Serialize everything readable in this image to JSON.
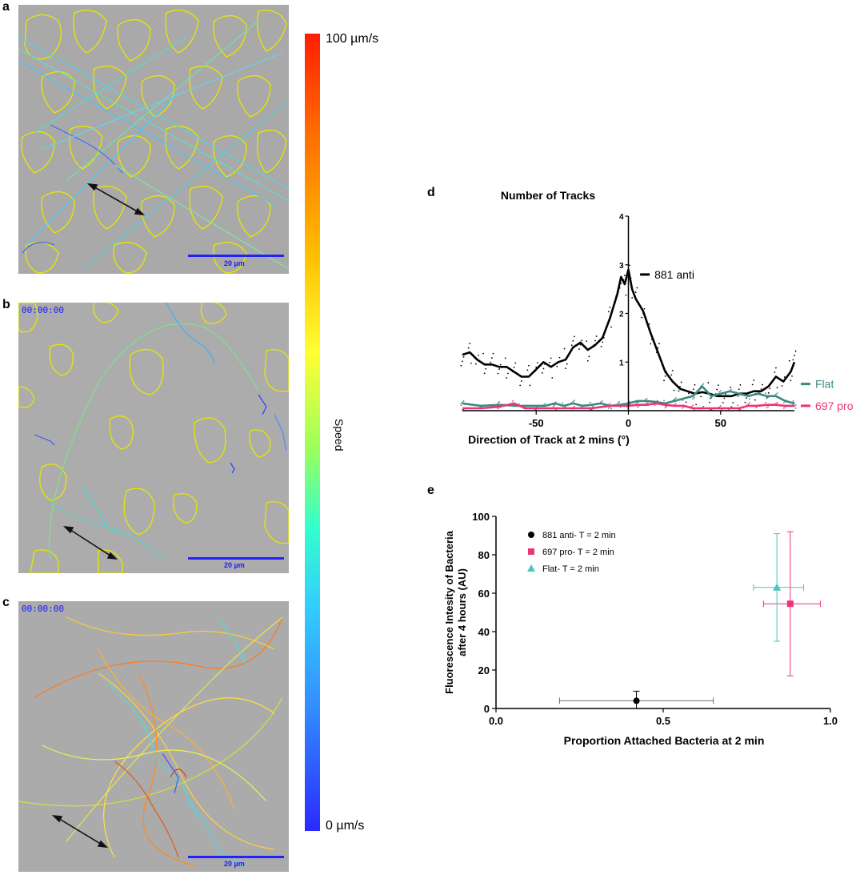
{
  "panels": {
    "a": {
      "letter": "a",
      "scalebar": "20 µm"
    },
    "b": {
      "letter": "b",
      "timestamp": "00:00:00",
      "scalebar": "20 µm"
    },
    "c": {
      "letter": "c",
      "timestamp": "00:00:00",
      "scalebar": "20 µm"
    },
    "d": {
      "letter": "d"
    },
    "e": {
      "letter": "e"
    }
  },
  "colorbar": {
    "top_label": "100 µm/s",
    "bottom_label": "0 µm/s",
    "title": "Speed"
  },
  "colors": {
    "anti881": "#000000",
    "flat": "#3b8a80",
    "pro697": "#ee3377",
    "flat_e": "#4dc4bd",
    "pro697_e": "#e8357a",
    "outline": "#e6e600"
  },
  "chart_data": [
    {
      "type": "line",
      "title": "Number of Tracks",
      "xlabel": "Direction of Track at 2 mins (°)",
      "ylabel": "",
      "xlim": [
        -90,
        90
      ],
      "ylim": [
        0,
        4
      ],
      "xticks": [
        -50,
        0,
        50
      ],
      "yticks": [
        1,
        2,
        3,
        4
      ],
      "series": [
        {
          "name": "881 anti",
          "x": [
            -90,
            -86,
            -82,
            -78,
            -74,
            -70,
            -66,
            -62,
            -58,
            -54,
            -50,
            -46,
            -42,
            -38,
            -34,
            -30,
            -26,
            -22,
            -18,
            -14,
            -10,
            -6,
            -4,
            -2,
            0,
            2,
            4,
            8,
            12,
            16,
            20,
            24,
            28,
            32,
            36,
            40,
            44,
            48,
            52,
            56,
            60,
            64,
            68,
            72,
            76,
            80,
            84,
            88,
            90
          ],
          "y": [
            1.15,
            1.2,
            1.05,
            0.95,
            0.95,
            0.9,
            0.9,
            0.8,
            0.7,
            0.7,
            0.85,
            1.0,
            0.9,
            1.0,
            1.05,
            1.3,
            1.4,
            1.25,
            1.35,
            1.5,
            1.9,
            2.4,
            2.75,
            2.6,
            2.9,
            2.5,
            2.3,
            2.05,
            1.6,
            1.2,
            0.8,
            0.6,
            0.45,
            0.4,
            0.35,
            0.38,
            0.35,
            0.3,
            0.3,
            0.3,
            0.35,
            0.35,
            0.4,
            0.4,
            0.5,
            0.7,
            0.6,
            0.8,
            1.0
          ]
        },
        {
          "name": "Flat",
          "x": [
            -90,
            -80,
            -70,
            -60,
            -50,
            -45,
            -40,
            -35,
            -30,
            -25,
            -20,
            -15,
            -10,
            -5,
            0,
            5,
            10,
            15,
            20,
            25,
            30,
            35,
            40,
            45,
            50,
            55,
            60,
            65,
            70,
            75,
            80,
            85,
            90
          ],
          "y": [
            0.15,
            0.1,
            0.12,
            0.1,
            0.1,
            0.1,
            0.15,
            0.1,
            0.15,
            0.1,
            0.12,
            0.15,
            0.1,
            0.12,
            0.15,
            0.2,
            0.2,
            0.18,
            0.15,
            0.2,
            0.25,
            0.3,
            0.5,
            0.3,
            0.35,
            0.4,
            0.35,
            0.3,
            0.35,
            0.3,
            0.3,
            0.2,
            0.15
          ]
        },
        {
          "name": "697 pro",
          "x": [
            -90,
            -80,
            -70,
            -62,
            -56,
            -50,
            -40,
            -30,
            -20,
            -10,
            0,
            5,
            10,
            15,
            20,
            25,
            30,
            35,
            40,
            45,
            50,
            55,
            60,
            65,
            70,
            75,
            80,
            85,
            90
          ],
          "y": [
            0.05,
            0.05,
            0.08,
            0.15,
            0.05,
            0.05,
            0.05,
            0.05,
            0.05,
            0.1,
            0.1,
            0.12,
            0.12,
            0.15,
            0.12,
            0.1,
            0.1,
            0.05,
            0.05,
            0.05,
            0.05,
            0.05,
            0.05,
            0.1,
            0.1,
            0.12,
            0.12,
            0.1,
            0.1
          ]
        }
      ]
    },
    {
      "type": "scatter",
      "title": "",
      "xlabel": "Proportion Attached Bacteria at 2 min",
      "ylabel_lines": [
        "Fluorescence Intesity of Bacteria",
        "after 4 hours (AU)"
      ],
      "xlim": [
        0,
        1
      ],
      "ylim": [
        0,
        100
      ],
      "xticks": [
        "0.0",
        "0.5",
        "1.0"
      ],
      "yticks": [
        0,
        20,
        40,
        60,
        80,
        100
      ],
      "series": [
        {
          "name": "881 anti- T = 2 min",
          "marker": "circle",
          "x": 0.42,
          "y": 4,
          "xerr": [
            0.19,
            0.65
          ],
          "yerr": [
            0,
            9
          ]
        },
        {
          "name": "697 pro- T = 2 min",
          "marker": "square",
          "x": 0.88,
          "y": 54.5,
          "xerr": [
            0.8,
            0.97
          ],
          "yerr": [
            17,
            92
          ]
        },
        {
          "name": "Flat- T = 2 min",
          "marker": "triangle",
          "x": 0.84,
          "y": 63,
          "xerr": [
            0.77,
            0.92
          ],
          "yerr": [
            35,
            91
          ]
        }
      ]
    }
  ]
}
